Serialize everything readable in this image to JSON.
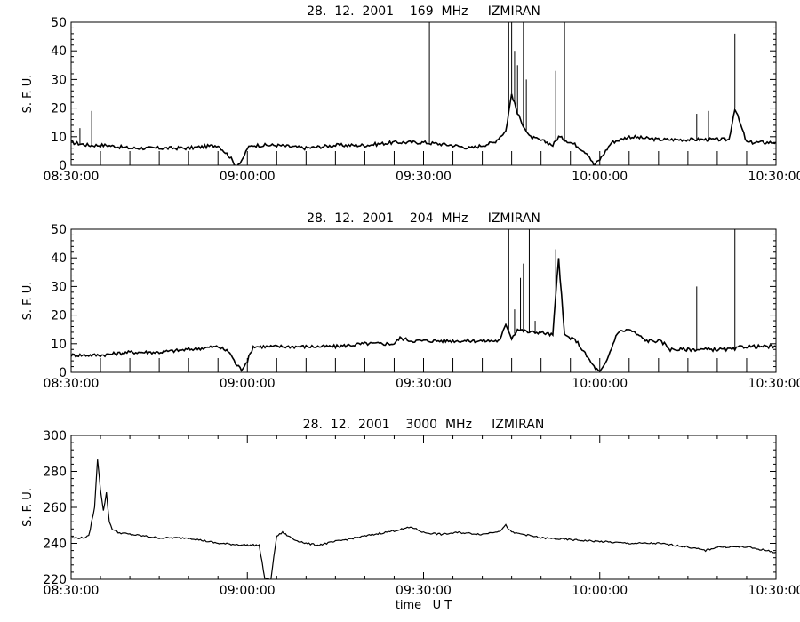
{
  "chart_data": [
    {
      "type": "line",
      "title": "28.  12.  2001    169  MHz     IZMIRAN",
      "ylabel": "S. F. U.",
      "xlabel": "",
      "xlim": [
        "08:30:00",
        "10:30:00"
      ],
      "ylim": [
        0,
        50
      ],
      "x_ticks": [
        "08:30:00",
        "09:00:00",
        "09:30:00",
        "10:00:00",
        "10:30:00"
      ],
      "y_ticks": [
        0,
        10,
        20,
        30,
        40,
        50
      ],
      "grid": false,
      "series": [
        {
          "x": [
            "08:30:00",
            "08:33:00",
            "08:36:00",
            "08:40:00",
            "08:45:00",
            "08:50:00",
            "08:55:00",
            "08:57:00",
            "08:58:00",
            "08:59:00",
            "09:00:00",
            "09:01:00",
            "09:05:00",
            "09:10:00",
            "09:15:00",
            "09:20:00",
            "09:25:00",
            "09:30:00",
            "09:35:00",
            "09:38:00",
            "09:42:00",
            "09:44:00",
            "09:45:00",
            "09:46:00",
            "09:48:00",
            "09:51:00",
            "09:52:00",
            "09:53:00",
            "09:56:00",
            "09:58:00",
            "09:59:00",
            "10:00:00",
            "10:02:00",
            "10:05:00",
            "10:10:00",
            "10:15:00",
            "10:20:00",
            "10:22:00",
            "10:23:00",
            "10:25:00",
            "10:30:00"
          ],
          "values": [
            8,
            7,
            7,
            6,
            6,
            6,
            7,
            3,
            0,
            1,
            6,
            7,
            7,
            6,
            7,
            7,
            8,
            8,
            7,
            6,
            8,
            12,
            25,
            18,
            10,
            8,
            7,
            10,
            7,
            4,
            0,
            2,
            8,
            10,
            9,
            9,
            9,
            9,
            20,
            8,
            8
          ]
        }
      ],
      "spikes": [
        {
          "x": "08:31:30",
          "y": 13
        },
        {
          "x": "08:33:30",
          "y": 19
        },
        {
          "x": "09:31:00",
          "y": 50
        },
        {
          "x": "09:44:30",
          "y": 50
        },
        {
          "x": "09:45:00",
          "y": 50
        },
        {
          "x": "09:45:30",
          "y": 40
        },
        {
          "x": "09:46:00",
          "y": 35
        },
        {
          "x": "09:47:00",
          "y": 50
        },
        {
          "x": "09:47:30",
          "y": 30
        },
        {
          "x": "09:52:30",
          "y": 33
        },
        {
          "x": "09:54:00",
          "y": 50
        },
        {
          "x": "10:16:30",
          "y": 18
        },
        {
          "x": "10:18:30",
          "y": 19
        },
        {
          "x": "10:23:00",
          "y": 46
        }
      ]
    },
    {
      "type": "line",
      "title": "28.  12.  2001    204  MHz     IZMIRAN",
      "ylabel": "S. F. U.",
      "xlabel": "",
      "xlim": [
        "08:30:00",
        "10:30:00"
      ],
      "ylim": [
        0,
        50
      ],
      "x_ticks": [
        "08:30:00",
        "09:00:00",
        "09:30:00",
        "10:00:00",
        "10:30:00"
      ],
      "y_ticks": [
        0,
        10,
        20,
        30,
        40,
        50
      ],
      "grid": false,
      "series": [
        {
          "x": [
            "08:30:00",
            "08:35:00",
            "08:40:00",
            "08:45:00",
            "08:50:00",
            "08:55:00",
            "08:57:00",
            "08:58:00",
            "08:59:00",
            "09:00:00",
            "09:01:00",
            "09:05:00",
            "09:10:00",
            "09:15:00",
            "09:20:00",
            "09:25:00",
            "09:26:00",
            "09:28:00",
            "09:30:00",
            "09:35:00",
            "09:40:00",
            "09:43:00",
            "09:44:00",
            "09:45:00",
            "09:46:00",
            "09:48:00",
            "09:50:00",
            "09:52:00",
            "09:53:00",
            "09:54:00",
            "09:56:00",
            "09:58:00",
            "09:59:00",
            "10:00:00",
            "10:01:00",
            "10:03:00",
            "10:05:00",
            "10:08:00",
            "10:10:00",
            "10:11:00",
            "10:12:00",
            "10:15:00",
            "10:20:00",
            "10:23:00",
            "10:24:00",
            "10:30:00"
          ],
          "values": [
            6,
            6,
            7,
            7,
            8,
            9,
            7,
            3,
            1,
            4,
            9,
            9,
            9,
            9,
            10,
            10,
            12,
            11,
            11,
            11,
            11,
            11,
            17,
            12,
            15,
            14,
            14,
            13,
            40,
            13,
            11,
            5,
            2,
            0,
            3,
            14,
            15,
            11,
            11,
            10,
            8,
            8,
            8,
            8,
            9,
            9
          ]
        }
      ],
      "spikes": [
        {
          "x": "09:44:30",
          "y": 50
        },
        {
          "x": "09:45:30",
          "y": 22
        },
        {
          "x": "09:46:30",
          "y": 33
        },
        {
          "x": "09:47:00",
          "y": 38
        },
        {
          "x": "09:48:00",
          "y": 50
        },
        {
          "x": "09:49:00",
          "y": 18
        },
        {
          "x": "09:52:30",
          "y": 43
        },
        {
          "x": "10:16:30",
          "y": 30
        },
        {
          "x": "10:23:00",
          "y": 50
        }
      ]
    },
    {
      "type": "line",
      "title": "28.  12.  2001    3000  MHz     IZMIRAN",
      "ylabel": "S. F. U.",
      "xlabel": "time   U T",
      "xlim": [
        "08:30:00",
        "10:30:00"
      ],
      "ylim": [
        220,
        300
      ],
      "x_ticks": [
        "08:30:00",
        "09:00:00",
        "09:30:00",
        "10:00:00",
        "10:30:00"
      ],
      "y_ticks": [
        220,
        240,
        260,
        280,
        300
      ],
      "grid": false,
      "series": [
        {
          "x": [
            "08:30:00",
            "08:32:00",
            "08:33:00",
            "08:34:00",
            "08:34:30",
            "08:35:00",
            "08:35:30",
            "08:36:00",
            "08:36:30",
            "08:37:00",
            "08:38:00",
            "08:40:00",
            "08:45:00",
            "08:50:00",
            "08:55:00",
            "09:00:00",
            "09:02:00",
            "09:03:00",
            "09:04:00",
            "09:05:00",
            "09:06:00",
            "09:07:00",
            "09:08:00",
            "09:10:00",
            "09:12:00",
            "09:15:00",
            "09:20:00",
            "09:25:00",
            "09:28:00",
            "09:30:00",
            "09:33:00",
            "09:36:00",
            "09:40:00",
            "09:43:00",
            "09:44:00",
            "09:45:00",
            "09:47:00",
            "09:50:00",
            "09:55:00",
            "10:00:00",
            "10:05:00",
            "10:10:00",
            "10:15:00",
            "10:18:00",
            "10:20:00",
            "10:25:00",
            "10:30:00"
          ],
          "values": [
            243,
            243,
            244,
            260,
            287,
            270,
            258,
            268,
            252,
            248,
            246,
            245,
            243,
            243,
            240,
            239,
            239,
            220,
            220,
            244,
            246,
            244,
            242,
            240,
            239,
            241,
            244,
            247,
            249,
            246,
            245,
            246,
            245,
            247,
            250,
            246,
            245,
            243,
            242,
            241,
            240,
            240,
            238,
            236,
            238,
            238,
            235
          ]
        }
      ]
    }
  ]
}
